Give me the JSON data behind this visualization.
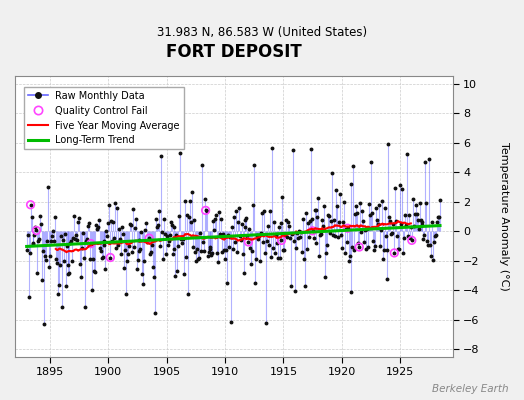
{
  "title": "FORT DEPOSIT",
  "subtitle": "31.983 N, 86.583 W (United States)",
  "ylabel": "Temperature Anomaly (°C)",
  "watermark": "Berkeley Earth",
  "xlim": [
    1892.0,
    1929.5
  ],
  "ylim": [
    -8.5,
    10.5
  ],
  "yticks": [
    -8,
    -6,
    -4,
    -2,
    0,
    2,
    4,
    6,
    8,
    10
  ],
  "xticks": [
    1895,
    1900,
    1905,
    1910,
    1915,
    1920,
    1925
  ],
  "bg_color": "#f0f0f0",
  "plot_bg": "#ffffff",
  "raw_line_color": "#6666ff",
  "raw_line_alpha": 0.5,
  "raw_marker_color": "#111111",
  "qc_color": "#ff44ff",
  "moving_avg_color": "#ff0000",
  "trend_color": "#00bb00",
  "trend_slope": 0.04,
  "trend_intercept": -0.35,
  "seed": 12345
}
